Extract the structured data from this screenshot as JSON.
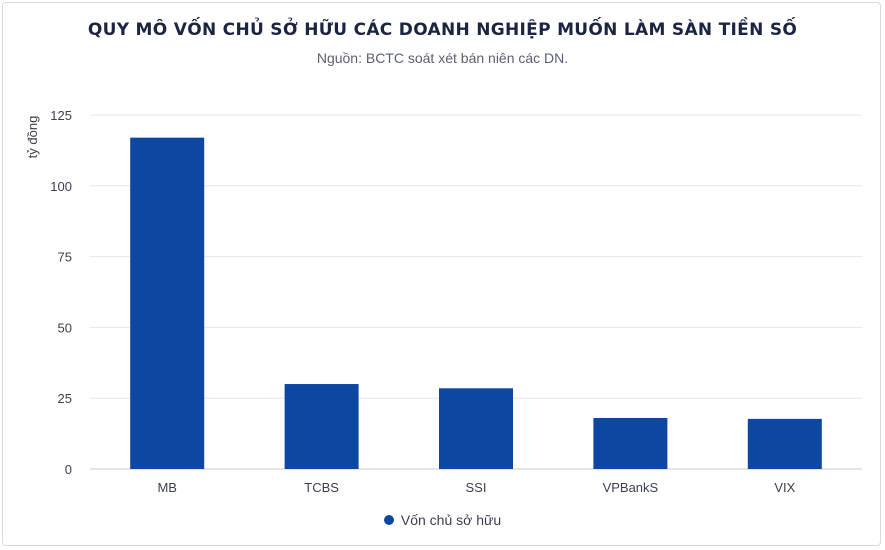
{
  "chart_data": {
    "type": "bar",
    "title": "QUY MÔ VỐN CHỦ SỞ HỮU CÁC DOANH NGHIỆP MUỐN LÀM SÀN TIỀN SỐ",
    "subtitle": "Nguồn: BCTC soát xét bán niên các DN.",
    "ylabel": "tỷ đồng",
    "xlabel": "",
    "categories": [
      "MB",
      "TCBS",
      "SSI",
      "VPBankS",
      "VIX"
    ],
    "series": [
      {
        "name": "Vốn chủ sở hữu",
        "values": [
          117,
          30,
          28.5,
          18,
          17.7
        ],
        "color": "#0d47a1"
      }
    ],
    "ylim": [
      0,
      125
    ],
    "yticks": [
      0,
      25,
      50,
      75,
      100,
      125
    ],
    "grid": true,
    "legend": "bottom-center"
  }
}
